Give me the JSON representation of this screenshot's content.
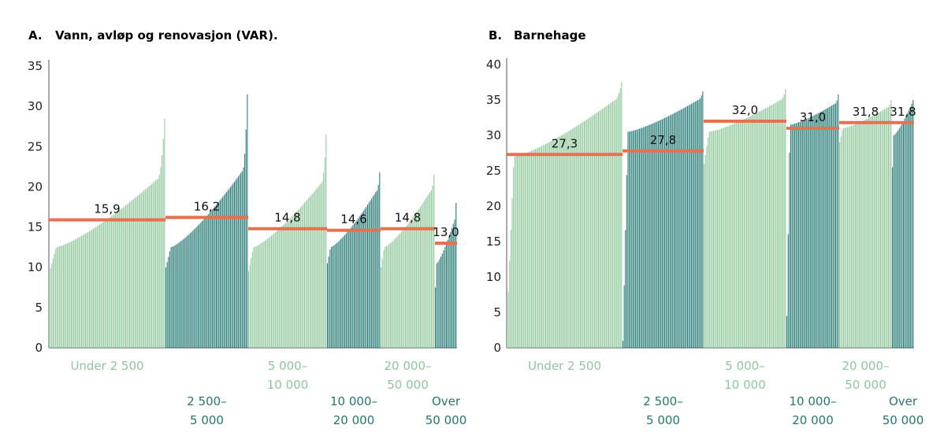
{
  "palette": {
    "light": "#8fc79a",
    "dark": "#237873",
    "mean": "#e8704f",
    "axis": "#555555"
  },
  "chart_data": [
    {
      "type": "bar",
      "panel_label": "A.",
      "title": "Vann, avløp og renovasjon (VAR).",
      "ylim": [
        0,
        35
      ],
      "yticks": [
        0,
        5,
        10,
        15,
        20,
        25,
        30,
        35
      ],
      "groups": [
        {
          "label1": "Under 2 500",
          "label2": "",
          "tone": "light",
          "mean": 15.9,
          "mean_label": "15,9",
          "n": 90,
          "min": 9.3,
          "low": 12.5,
          "high": 21.0,
          "max": 28.5
        },
        {
          "label1": "2 500–",
          "label2": "5 000",
          "tone": "dark",
          "mean": 16.2,
          "mean_label": "16,2",
          "n": 64,
          "min": 10.0,
          "low": 12.5,
          "high": 22.0,
          "max": 31.5
        },
        {
          "label1": "5 000–",
          "label2": "10 000",
          "tone": "light",
          "mean": 14.8,
          "mean_label": "14,8",
          "n": 62,
          "min": 9.5,
          "low": 12.5,
          "high": 20.5,
          "max": 26.5
        },
        {
          "label1": "10 000–",
          "label2": "20 000",
          "tone": "dark",
          "mean": 14.6,
          "mean_label": "14,6",
          "n": 40,
          "min": 10.5,
          "low": 12.5,
          "high": 19.5,
          "max": 21.8
        },
        {
          "label1": "20 000–",
          "label2": "50 000",
          "tone": "light",
          "mean": 14.8,
          "mean_label": "14,8",
          "n": 40,
          "min": 10.0,
          "low": 12.5,
          "high": 19.5,
          "max": 21.5
        },
        {
          "label1": "Over",
          "label2": "50 000",
          "tone": "dark",
          "mean": 13.0,
          "mean_label": "13,0",
          "n": 16,
          "min": 7.5,
          "low": 10.5,
          "high": 16.0,
          "max": 18.0
        }
      ]
    },
    {
      "type": "bar",
      "panel_label": "B.",
      "title": "Barnehage",
      "ylim": [
        0,
        40
      ],
      "yticks": [
        0,
        5,
        10,
        15,
        20,
        25,
        30,
        35,
        40
      ],
      "groups": [
        {
          "label1": "Under 2 500",
          "label2": "",
          "tone": "light",
          "mean": 27.3,
          "mean_label": "27,3",
          "n": 90,
          "min": 3.5,
          "low": 27.0,
          "high": 35.0,
          "max": 37.5
        },
        {
          "label1": "2 500–",
          "label2": "5 000",
          "tone": "dark",
          "mean": 27.8,
          "mean_label": "27,8",
          "n": 64,
          "min": 1.0,
          "low": 30.5,
          "high": 35.0,
          "max": 36.2
        },
        {
          "label1": "5 000–",
          "label2": "10 000",
          "tone": "light",
          "mean": 32.0,
          "mean_label": "32,0",
          "n": 62,
          "min": 26.0,
          "low": 30.5,
          "high": 35.0,
          "max": 36.5
        },
        {
          "label1": "10 000–",
          "label2": "20 000",
          "tone": "dark",
          "mean": 31.0,
          "mean_label": "31,0",
          "n": 40,
          "min": 4.5,
          "low": 31.5,
          "high": 34.5,
          "max": 35.8
        },
        {
          "label1": "20 000–",
          "label2": "50 000",
          "tone": "light",
          "mean": 31.8,
          "mean_label": "31,8",
          "n": 40,
          "min": 29.0,
          "low": 31.0,
          "high": 34.0,
          "max": 35.0
        },
        {
          "label1": "Over",
          "label2": "50 000",
          "tone": "dark",
          "mean": 31.8,
          "mean_label": "31,8",
          "n": 16,
          "min": 25.5,
          "low": 30.0,
          "high": 34.5,
          "max": 35.0
        }
      ]
    }
  ]
}
